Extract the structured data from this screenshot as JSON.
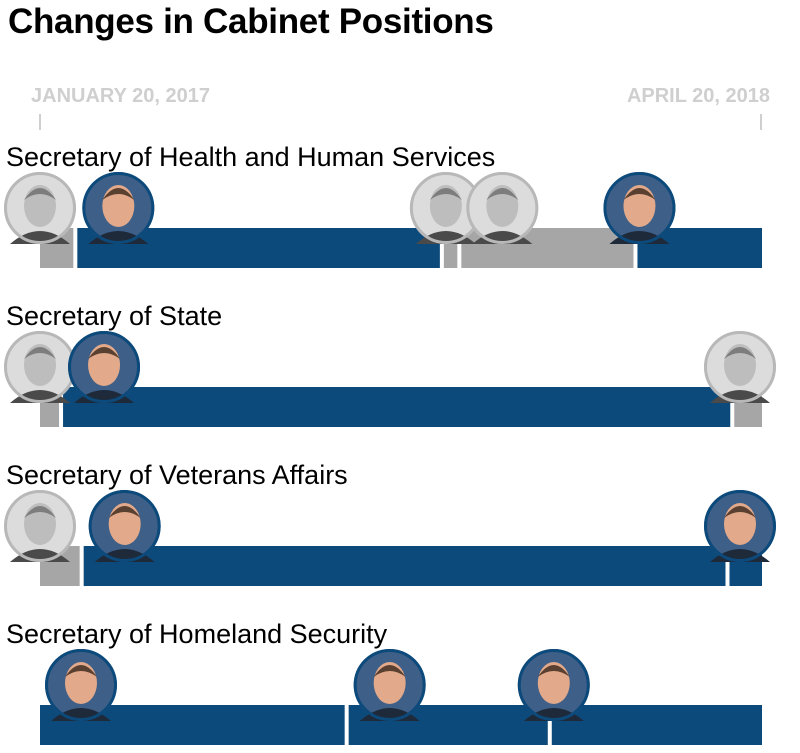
{
  "title": "Changes in Cabinet Positions",
  "timeline": {
    "start_label": "JANUARY 20, 2017",
    "end_label": "APRIL 20, 2018"
  },
  "colors": {
    "confirmed": "#0d4a7c",
    "acting": "#a6a6a6",
    "axis_label": "#cfcfcf"
  },
  "chart_data": {
    "type": "timeline",
    "x_start": "2017-01-20",
    "x_end": "2018-04-20",
    "rows": [
      {
        "position": "Secretary of Health and Human Services",
        "tenures": [
          {
            "start": "2017-01-20",
            "end": "2017-02-10",
            "status": "acting",
            "photo": "portrait-gray"
          },
          {
            "start": "2017-02-10",
            "end": "2017-09-29",
            "status": "confirmed",
            "photo": "portrait-color"
          },
          {
            "start": "2017-09-29",
            "end": "2017-10-10",
            "status": "acting",
            "photo": "portrait-gray"
          },
          {
            "start": "2017-10-10",
            "end": "2018-01-29",
            "status": "acting",
            "photo": "portrait-gray"
          },
          {
            "start": "2018-01-29",
            "end": "2018-04-20",
            "status": "confirmed",
            "photo": "portrait-color"
          }
        ]
      },
      {
        "position": "Secretary of State",
        "tenures": [
          {
            "start": "2017-01-20",
            "end": "2017-02-01",
            "status": "acting",
            "photo": "portrait-gray"
          },
          {
            "start": "2017-02-01",
            "end": "2018-03-31",
            "status": "confirmed",
            "photo": "portrait-color"
          },
          {
            "start": "2018-03-31",
            "end": "2018-04-20",
            "status": "acting",
            "photo": "portrait-gray"
          }
        ]
      },
      {
        "position": "Secretary of Veterans Affairs",
        "tenures": [
          {
            "start": "2017-01-20",
            "end": "2017-02-14",
            "status": "acting",
            "photo": "portrait-gray"
          },
          {
            "start": "2017-02-14",
            "end": "2018-03-28",
            "status": "confirmed",
            "photo": "portrait-color"
          },
          {
            "start": "2018-03-28",
            "end": "2018-04-20",
            "status": "confirmed",
            "photo": "portrait-color"
          }
        ]
      },
      {
        "position": "Secretary of Homeland Security",
        "tenures": [
          {
            "start": "2017-01-20",
            "end": "2017-07-31",
            "status": "confirmed",
            "photo": "portrait-color"
          },
          {
            "start": "2017-07-31",
            "end": "2017-12-06",
            "status": "confirmed",
            "photo": "portrait-color"
          },
          {
            "start": "2017-12-06",
            "end": "2018-04-20",
            "status": "confirmed",
            "photo": "portrait-color"
          }
        ]
      }
    ]
  }
}
